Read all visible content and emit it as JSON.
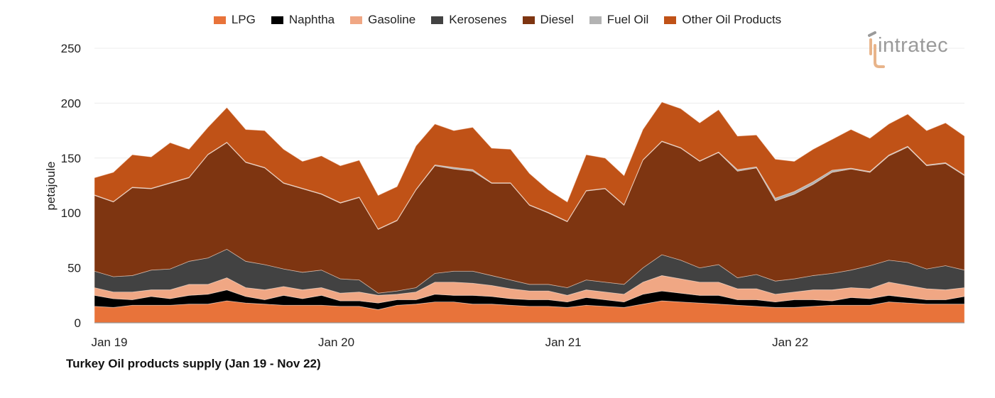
{
  "chart_data": {
    "type": "area",
    "stacked": true,
    "title": "Turkey Oil products supply (Jan 19 - Nov 22)",
    "xlabel": "",
    "ylabel": "petajoule",
    "ylim": [
      0,
      250
    ],
    "yticks": [
      0,
      50,
      100,
      150,
      200,
      250
    ],
    "xtick_labels": [
      {
        "label": "Jan 19",
        "index": 0
      },
      {
        "label": "Jan 20",
        "index": 12
      },
      {
        "label": "Jan 21",
        "index": 24
      },
      {
        "label": "Jan 22",
        "index": 36
      }
    ],
    "grid": true,
    "legend_position": "top",
    "x": [
      "Jan 19",
      "Feb 19",
      "Mar 19",
      "Apr 19",
      "May 19",
      "Jun 19",
      "Jul 19",
      "Aug 19",
      "Sep 19",
      "Oct 19",
      "Nov 19",
      "Dec 19",
      "Jan 20",
      "Feb 20",
      "Mar 20",
      "Apr 20",
      "May 20",
      "Jun 20",
      "Jul 20",
      "Aug 20",
      "Sep 20",
      "Oct 20",
      "Nov 20",
      "Dec 20",
      "Jan 21",
      "Feb 21",
      "Mar 21",
      "Apr 21",
      "May 21",
      "Jun 21",
      "Jul 21",
      "Aug 21",
      "Sep 21",
      "Oct 21",
      "Nov 21",
      "Dec 21",
      "Jan 22",
      "Feb 22",
      "Mar 22",
      "Apr 22",
      "May 22",
      "Jun 22",
      "Jul 22",
      "Aug 22",
      "Sep 22",
      "Oct 22",
      "Nov 22"
    ],
    "series": [
      {
        "name": "LPG",
        "color": "#E8733A",
        "values": [
          15,
          14,
          16,
          16,
          16,
          17,
          17,
          20,
          18,
          17,
          16,
          16,
          16,
          15,
          15,
          12,
          16,
          17,
          19,
          19,
          17,
          17,
          16,
          15,
          15,
          14,
          16,
          15,
          14,
          17,
          20,
          19,
          18,
          17,
          16,
          15,
          14,
          14,
          15,
          16,
          16,
          16,
          19,
          18,
          17,
          17,
          17
        ]
      },
      {
        "name": "Naphtha",
        "color": "#000000",
        "values": [
          10,
          8,
          5,
          8,
          6,
          8,
          9,
          10,
          6,
          4,
          9,
          6,
          9,
          5,
          5,
          6,
          5,
          4,
          7,
          6,
          8,
          7,
          6,
          6,
          6,
          5,
          7,
          6,
          5,
          9,
          9,
          8,
          7,
          8,
          5,
          6,
          5,
          7,
          6,
          4,
          7,
          6,
          6,
          5,
          4,
          4,
          7
        ]
      },
      {
        "name": "Gasoline",
        "color": "#F0A784",
        "values": [
          7,
          6,
          7,
          6,
          8,
          10,
          9,
          11,
          8,
          9,
          8,
          8,
          7,
          7,
          8,
          7,
          5,
          7,
          11,
          12,
          11,
          10,
          9,
          8,
          8,
          6,
          7,
          7,
          7,
          11,
          14,
          13,
          12,
          12,
          10,
          10,
          7,
          7,
          9,
          10,
          9,
          9,
          12,
          11,
          10,
          9,
          8
        ]
      },
      {
        "name": "Kerosenes",
        "color": "#424242",
        "values": [
          15,
          14,
          15,
          18,
          19,
          21,
          24,
          26,
          24,
          23,
          16,
          16,
          16,
          13,
          11,
          2,
          3,
          4,
          8,
          10,
          11,
          9,
          8,
          6,
          6,
          7,
          9,
          9,
          9,
          13,
          19,
          17,
          13,
          16,
          10,
          13,
          12,
          12,
          13,
          15,
          16,
          21,
          20,
          21,
          18,
          22,
          16
        ]
      },
      {
        "name": "Diesel",
        "color": "#7E3511",
        "values": [
          69,
          68,
          80,
          74,
          78,
          76,
          94,
          97,
          90,
          88,
          78,
          76,
          69,
          69,
          75,
          58,
          64,
          89,
          98,
          93,
          91,
          84,
          88,
          72,
          65,
          60,
          81,
          85,
          72,
          98,
          103,
          102,
          97,
          102,
          97,
          97,
          73,
          77,
          83,
          92,
          92,
          85,
          95,
          105,
          94,
          93,
          86
        ]
      },
      {
        "name": "Fuel Oil",
        "color": "#B3B3B3",
        "values": [
          0.5,
          0.5,
          0.5,
          0.5,
          0.5,
          0.5,
          0.5,
          0.5,
          0.5,
          0.5,
          0.5,
          0.5,
          0.5,
          0.5,
          0.5,
          0.5,
          0.5,
          0.5,
          0.8,
          1.5,
          1.5,
          0.5,
          0.5,
          0.5,
          0.5,
          0.5,
          0.5,
          0.5,
          0.5,
          0.5,
          0.5,
          0.5,
          0.5,
          0.5,
          1.5,
          1,
          2.5,
          2.5,
          2.5,
          2,
          0.8,
          0.8,
          0.8,
          0.8,
          0.8,
          0.8,
          0.8
        ]
      },
      {
        "name": "Other Oil Products",
        "color": "#C05217",
        "values": [
          15.5,
          26.5,
          29.5,
          28.5,
          36.5,
          25.5,
          24.5,
          31.5,
          29.5,
          33.5,
          30.5,
          24.5,
          34.5,
          33.5,
          33.5,
          30.5,
          30.5,
          39.5,
          37.2,
          33.5,
          38.5,
          31.5,
          30.5,
          28.5,
          20.5,
          17.5,
          32.5,
          27.5,
          26.5,
          27.5,
          35.5,
          35.5,
          34.5,
          38.5,
          30.5,
          29,
          35.5,
          27.5,
          29.5,
          28,
          35.2,
          30.2,
          28.2,
          29.2,
          31.2,
          36.2,
          35.2
        ]
      }
    ]
  },
  "logo": {
    "text": "intratec"
  }
}
